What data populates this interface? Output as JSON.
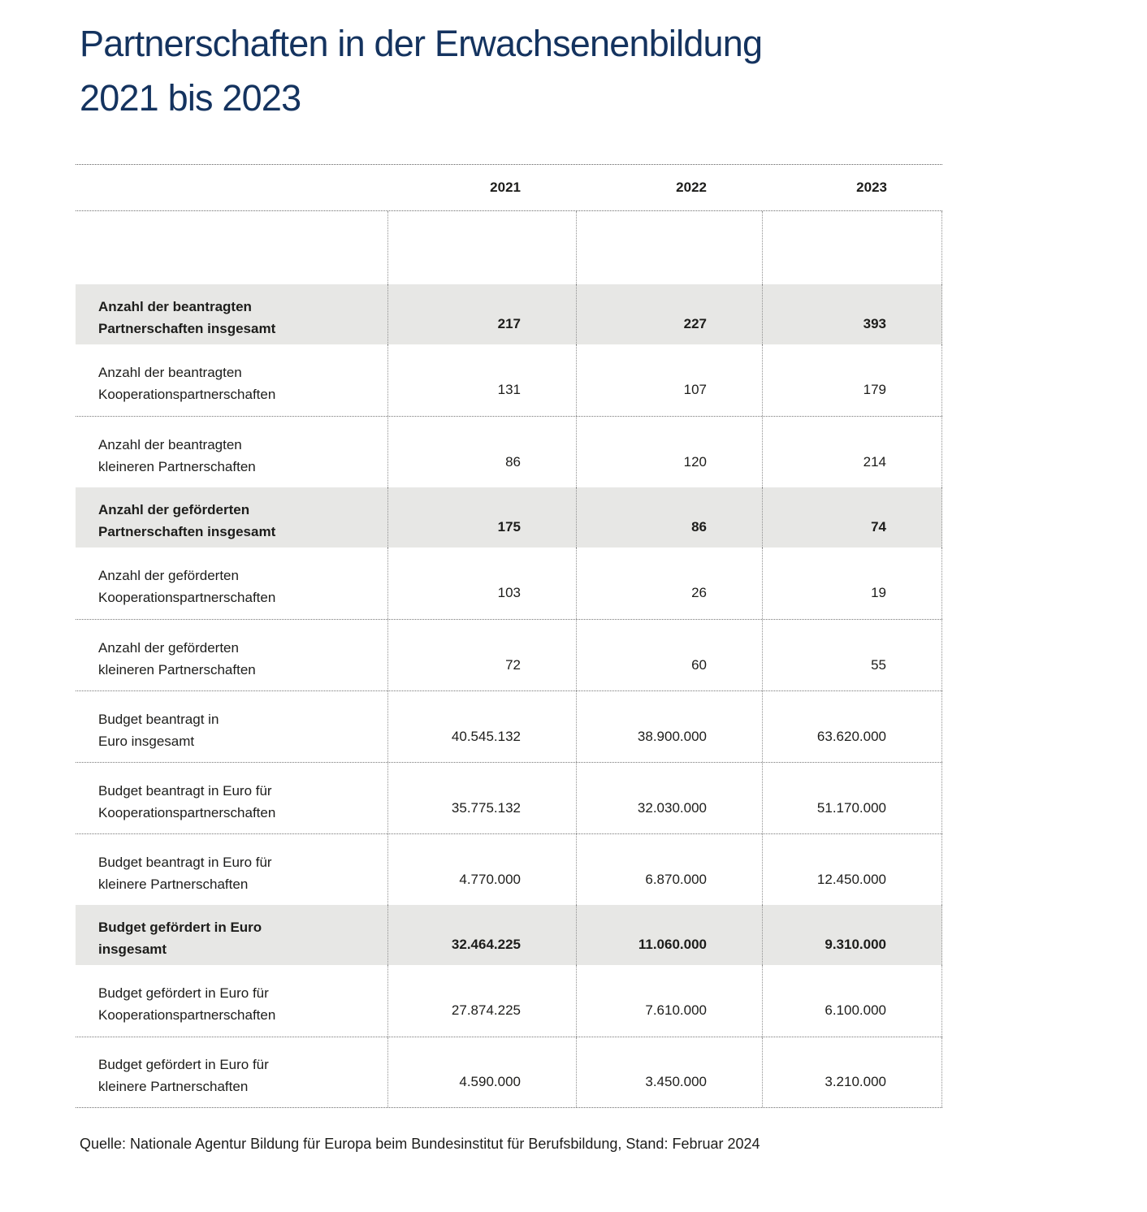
{
  "page": {
    "title_line1": "Partnerschaften in der Erwachsenenbildung",
    "title_line2": "2021 bis 2023",
    "source": "Quelle: Nationale Agentur Bildung für Europa beim Bundesinstitut für Berufsbildung, Stand: Februar 2024"
  },
  "colors": {
    "title": "#14335f",
    "text": "#1d1d1b",
    "row_highlight_background": "#e7e7e5",
    "rule_dotted": "#787878",
    "page_background": "#ffffff"
  },
  "chart_data": {
    "type": "table",
    "title": "Partnerschaften in der Erwachsenenbildung 2021 bis 2023",
    "columns": [
      "2021",
      "2022",
      "2023"
    ],
    "rows": [
      {
        "label": "Anzahl der beantragten\nPartnerschaften insgesamt",
        "cells": [
          "217",
          "227",
          "393"
        ],
        "values": [
          217,
          227,
          393
        ],
        "highlight": true
      },
      {
        "label": "Anzahl der beantragten\nKooperationspartnerschaften",
        "cells": [
          "131",
          "107",
          "179"
        ],
        "values": [
          131,
          107,
          179
        ],
        "highlight": false
      },
      {
        "label": "Anzahl der beantragten\nkleineren Partnerschaften",
        "cells": [
          "86",
          "120",
          "214"
        ],
        "values": [
          86,
          120,
          214
        ],
        "highlight": false
      },
      {
        "label": "Anzahl der geförderten\nPartnerschaften insgesamt",
        "cells": [
          "175",
          "86",
          "74"
        ],
        "values": [
          175,
          86,
          74
        ],
        "highlight": true
      },
      {
        "label": "Anzahl der geförderten\nKooperationspartnerschaften",
        "cells": [
          "103",
          "26",
          "19"
        ],
        "values": [
          103,
          26,
          19
        ],
        "highlight": false
      },
      {
        "label": "Anzahl der geförderten\nkleineren Partnerschaften",
        "cells": [
          "72",
          "60",
          "55"
        ],
        "values": [
          72,
          60,
          55
        ],
        "highlight": false
      },
      {
        "label": "Budget beantragt in\nEuro insgesamt",
        "cells": [
          "40.545.132",
          "38.900.000",
          "63.620.000"
        ],
        "values": [
          40545132,
          38900000,
          63620000
        ],
        "highlight": false
      },
      {
        "label": "Budget beantragt in Euro für\nKooperationspartnerschaften",
        "cells": [
          "35.775.132",
          "32.030.000",
          "51.170.000"
        ],
        "values": [
          35775132,
          32030000,
          51170000
        ],
        "highlight": false
      },
      {
        "label": "Budget beantragt in Euro für\nkleinere Partnerschaften",
        "cells": [
          "4.770.000",
          "6.870.000",
          "12.450.000"
        ],
        "values": [
          4770000,
          6870000,
          12450000
        ],
        "highlight": false
      },
      {
        "label": "Budget gefördert in Euro\ninsgesamt",
        "cells": [
          "32.464.225",
          "11.060.000",
          "9.310.000"
        ],
        "values": [
          32464225,
          11060000,
          9310000
        ],
        "highlight": true
      },
      {
        "label": "Budget gefördert in Euro für\nKooperationspartnerschaften",
        "cells": [
          "27.874.225",
          "7.610.000",
          "6.100.000"
        ],
        "values": [
          27874225,
          7610000,
          6100000
        ],
        "highlight": false
      },
      {
        "label": "Budget gefördert in Euro für\nkleinere Partnerschaften",
        "cells": [
          "4.590.000",
          "3.450.000",
          "3.210.000"
        ],
        "values": [
          4590000,
          3450000,
          3210000
        ],
        "highlight": false
      }
    ],
    "source": "Quelle: Nationale Agentur Bildung für Europa beim Bundesinstitut für Berufsbildung, Stand: Februar 2024",
    "layout_hints": {
      "grid": "dotted column and row rules",
      "value_alignment": "right",
      "highlight_rows_bold": true
    }
  }
}
